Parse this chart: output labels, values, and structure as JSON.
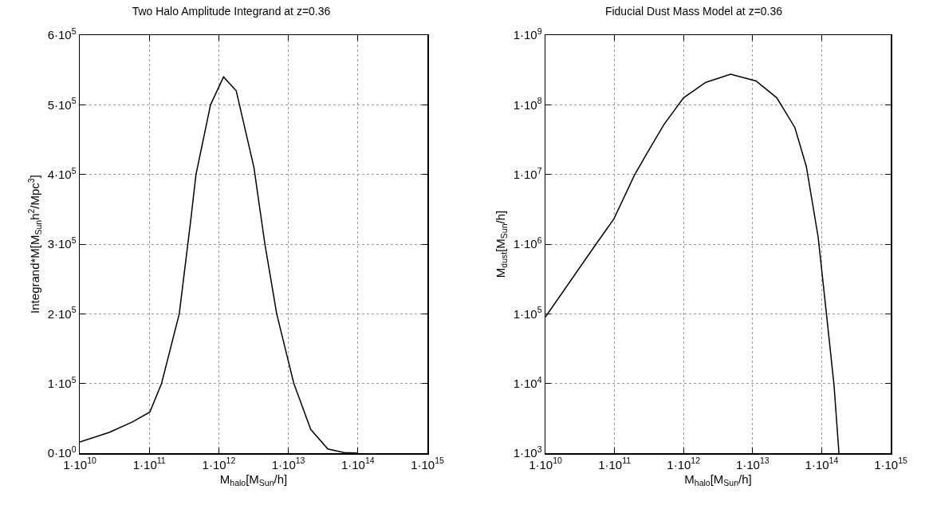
{
  "chart_data": [
    {
      "type": "line",
      "title": "Two Halo Amplitude Integrand at z=0.36",
      "xlabel": "M$_{halo}$[M$_{Sun}$/h]",
      "ylabel": "Integrand*M[M$_{Sun}$h$^{2}$/Mpc$^{3}$]",
      "log": "x",
      "grid": true,
      "line_style": "solid",
      "marker": "none",
      "x": [
        10000000000.0,
        27000000000.0,
        58000000000.0,
        102000000000.0,
        150000000000.0,
        270000000000.0,
        390000000000.0,
        470000000000.0,
        760000000000.0,
        1170000000000.0,
        1780000000000.0,
        3200000000000.0,
        4600000000000.0,
        6800000000000.0,
        12000000000000.0,
        21000000000000.0,
        37000000000000.0,
        63000000000000.0,
        100000000000000.0
      ],
      "series": [
        {
          "color": "#000000",
          "values": [
            16000,
            30000,
            45000,
            59000,
            100000,
            200000,
            330000,
            400000,
            500000,
            540000,
            520000,
            410000,
            300000,
            200000,
            100000,
            34000,
            6000,
            1000,
            0
          ]
        }
      ],
      "xlim": [
        10000000000.0,
        1000000000000000.0
      ],
      "xticks": [
        {
          "value": 10000000000.0,
          "label": "1·10$^{10}$"
        },
        {
          "value": 100000000000.0,
          "label": "1·10$^{11}$"
        },
        {
          "value": 1000000000000.0,
          "label": "1·10$^{12}$"
        },
        {
          "value": 10000000000000.0,
          "label": "1·10$^{13}$"
        },
        {
          "value": 100000000000000.0,
          "label": "1·10$^{14}$"
        },
        {
          "value": 1000000000000000.0,
          "label": "1·10$^{15}$"
        }
      ],
      "ylim": [
        0,
        600000
      ],
      "yticks": [
        {
          "value": 0,
          "label": "0·10$^{0}$"
        },
        {
          "value": 100000,
          "label": "1·10$^{5}$"
        },
        {
          "value": 200000,
          "label": "2·10$^{5}$"
        },
        {
          "value": 300000,
          "label": "3·10$^{5}$"
        },
        {
          "value": 400000,
          "label": "4·10$^{5}$"
        },
        {
          "value": 500000,
          "label": "5·10$^{5}$"
        },
        {
          "value": 600000,
          "label": "6·10$^{5}$"
        }
      ]
    },
    {
      "type": "line",
      "title": "Fiducial Dust Mass Model at z=0.36",
      "xlabel": "M$_{halo}$[M$_{Sun}$/h]",
      "ylabel": "M$_{dust}$[M$_{Sun}$/h]",
      "log": "xy",
      "grid": true,
      "line_style": "solid",
      "marker": "none",
      "x": [
        10000000000.0,
        54000000000.0,
        98000000000.0,
        195000000000.0,
        290000000000.0,
        520000000000.0,
        1000000000000.0,
        2100000000000.0,
        4800000000000.0,
        11200000000000.0,
        22400000000000.0,
        41000000000000.0,
        60000000000000.0,
        89000000000000.0,
        120000000000000.0,
        151000000000000.0,
        178000000000000.0
      ],
      "series": [
        {
          "color": "#000000",
          "values": [
            90000,
            1000000,
            2300000,
            9800000,
            19500000,
            52000000,
            126000000,
            210000000,
            275000000,
            220000000,
            126000000,
            47000000,
            13000000,
            1260000,
            81000,
            9500,
            1000
          ]
        }
      ],
      "xlim": [
        10000000000.0,
        1000000000000000.0
      ],
      "xticks": [
        {
          "value": 10000000000.0,
          "label": "1·10$^{10}$"
        },
        {
          "value": 100000000000.0,
          "label": "1·10$^{11}$"
        },
        {
          "value": 1000000000000.0,
          "label": "1·10$^{12}$"
        },
        {
          "value": 10000000000000.0,
          "label": "1·10$^{13}$"
        },
        {
          "value": 100000000000000.0,
          "label": "1·10$^{14}$"
        },
        {
          "value": 1000000000000000.0,
          "label": "1·10$^{15}$"
        }
      ],
      "ylim": [
        1000,
        1000000000
      ],
      "yticks": [
        {
          "value": 1000,
          "label": "1·10$^{3}$"
        },
        {
          "value": 10000,
          "label": "1·10$^{4}$"
        },
        {
          "value": 100000,
          "label": "1·10$^{5}$"
        },
        {
          "value": 1000000,
          "label": "1·10$^{6}$"
        },
        {
          "value": 10000000,
          "label": "1·10$^{7}$"
        },
        {
          "value": 100000000,
          "label": "1·10$^{8}$"
        },
        {
          "value": 1000000000,
          "label": "1·10$^{9}$"
        }
      ]
    }
  ]
}
